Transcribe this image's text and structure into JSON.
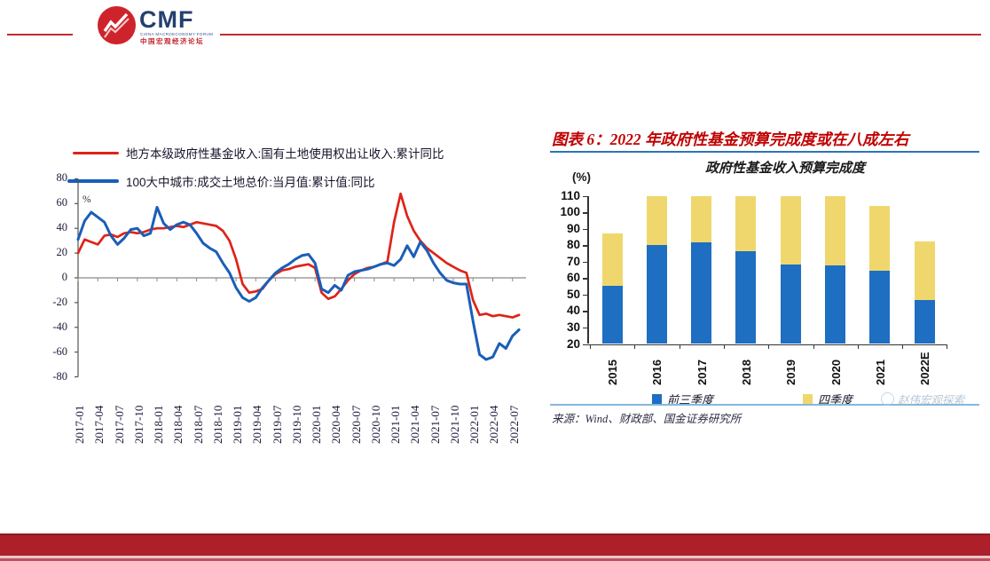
{
  "header": {
    "logo_text": "CMF",
    "logo_subtext_en": "CHINA MACROECONOMY FORUM",
    "logo_subtext_cn": "中国宏观经济论坛"
  },
  "left_chart": {
    "unit_label": "%"
  },
  "right_panel": {
    "figure_title": "图表 6：2022 年政府性基金预算完成度或在八成左右",
    "chart_title": "政府性基金收入预算完成度",
    "unit_label": "(%)",
    "source": "来源：Wind、财政部、国金证券研究所",
    "watermark": "赵伟宏观探索"
  },
  "colors": {
    "accent_red": "#c00000",
    "header_rule_red": "#bf2e33",
    "footer_band_red": "#ad2029",
    "title_underline_blue": "#2e75b6"
  },
  "chart_data": [
    {
      "type": "line",
      "title": "",
      "unit": "%",
      "ylim": [
        -80,
        80
      ],
      "y_ticks": [
        80,
        60,
        40,
        20,
        0,
        -20,
        -40,
        -60,
        -80
      ],
      "x_monthly_start": "2017-01",
      "x_tick_labels": [
        "2017-01",
        "2017-04",
        "2017-07",
        "2017-10",
        "2018-01",
        "2018-04",
        "2018-07",
        "2018-10",
        "2019-01",
        "2019-04",
        "2019-07",
        "2019-10",
        "2020-01",
        "2020-04",
        "2020-07",
        "2020-10",
        "2021-01",
        "2021-04",
        "2021-07",
        "2021-10",
        "2022-01",
        "2022-04",
        "2022-07"
      ],
      "grid": false,
      "legend_position": "top-left",
      "series": [
        {
          "name": "地方本级政府性基金收入:国有土地使用权出让收入:累计同比",
          "color": "#dd2418",
          "values": [
            20,
            31,
            29,
            27,
            34,
            35,
            33,
            36,
            37,
            36,
            37,
            39,
            40,
            40,
            41,
            42,
            41,
            43,
            45,
            44,
            43,
            42,
            38,
            30,
            15,
            -5,
            -12,
            -11,
            -9,
            -2,
            3,
            6,
            7,
            9,
            10,
            11,
            8,
            -12,
            -17,
            -15,
            -9,
            -2,
            3,
            6,
            8,
            9,
            11,
            13,
            45,
            68,
            50,
            38,
            30,
            24,
            20,
            16,
            12,
            9,
            6,
            4,
            -18,
            -30,
            -29,
            -31,
            -30,
            -31,
            -32,
            -30
          ]
        },
        {
          "name": "100大中城市:成交土地总价:当月值:累计值:同比",
          "color": "#1a5eb8",
          "values": [
            31,
            46,
            53,
            49,
            45,
            34,
            27,
            32,
            39,
            40,
            34,
            36,
            57,
            44,
            39,
            43,
            45,
            43,
            36,
            28,
            24,
            21,
            12,
            4,
            -8,
            -16,
            -19,
            -16,
            -8,
            -2,
            4,
            8,
            11,
            15,
            18,
            19,
            12,
            -9,
            -12,
            -6,
            -10,
            2,
            5,
            6,
            7,
            9,
            11,
            12,
            10,
            15,
            26,
            17,
            29,
            22,
            12,
            4,
            -2,
            -4,
            -5,
            -5,
            -35,
            -62,
            -66,
            -64,
            -53,
            -57,
            -47,
            -42
          ]
        }
      ]
    },
    {
      "type": "bar",
      "stacked": true,
      "title": "政府性基金收入预算完成度",
      "unit": "(%)",
      "categories": [
        "2015",
        "2016",
        "2017",
        "2018",
        "2019",
        "2020",
        "2021",
        "2022E"
      ],
      "ylim": [
        20,
        110
      ],
      "y_ticks": [
        110,
        100,
        90,
        80,
        70,
        60,
        50,
        40,
        30,
        20
      ],
      "grid": false,
      "legend_position": "bottom",
      "series": [
        {
          "name": "前三季度",
          "color": "#1e6ec2",
          "values": [
            55.5,
            80,
            81.5,
            76.5,
            68,
            67.5,
            64.5,
            46.5
          ]
        },
        {
          "name": "四季度",
          "color": "#efd76e",
          "values": [
            31.5,
            30,
            28.5,
            33.5,
            42,
            42.5,
            39.5,
            35.5
          ]
        }
      ]
    }
  ]
}
